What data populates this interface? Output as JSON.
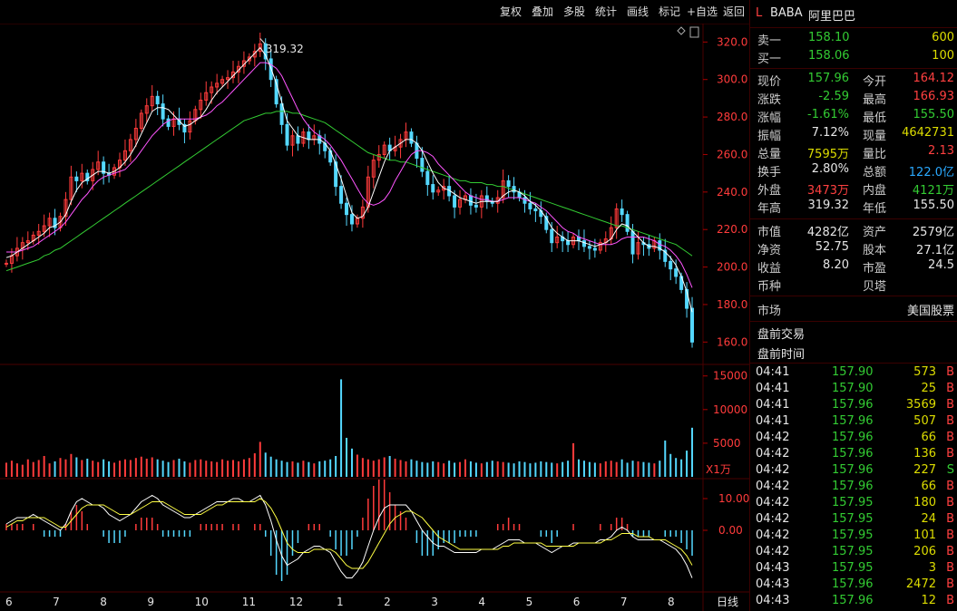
{
  "toolbar": {
    "buttons": [
      "复权",
      "叠加",
      "多股",
      "统计",
      "画线",
      "标记",
      "+自选",
      "返回"
    ]
  },
  "chart_data": {
    "type": "line",
    "main_price_ticks": [
      "320.0",
      "300.0",
      "280.0",
      "260.0",
      "240.0",
      "220.0",
      "200.0",
      "180.0",
      "160.0"
    ],
    "price_range": [
      150,
      325
    ],
    "max_price_label": "319.32",
    "volume_ticks": [
      "15000",
      "10000",
      "5000"
    ],
    "volume_unit": "X1万",
    "macd_ticks": [
      "10.00",
      "0.00"
    ],
    "x_labels": [
      "6",
      "7",
      "8",
      "9",
      "10",
      "11",
      "12",
      "1",
      "2",
      "3",
      "4",
      "5",
      "6",
      "7",
      "8"
    ],
    "period_label": "日线",
    "close_series": [
      202,
      206,
      210,
      213,
      214,
      217,
      219,
      222,
      226,
      221,
      227,
      236,
      248,
      246,
      250,
      246,
      252,
      256,
      250,
      249,
      253,
      257,
      262,
      268,
      274,
      282,
      286,
      291,
      287,
      279,
      275,
      279,
      276,
      272,
      278,
      284,
      289,
      293,
      296,
      298,
      300,
      301,
      304,
      307,
      310,
      312,
      315,
      319,
      311,
      300,
      287,
      276,
      265,
      270,
      266,
      272,
      268,
      270,
      266,
      262,
      256,
      243,
      234,
      228,
      223,
      226,
      232,
      248,
      257,
      260,
      265,
      262,
      264,
      268,
      272,
      266,
      258,
      251,
      244,
      240,
      241,
      243,
      238,
      232,
      236,
      238,
      233,
      232,
      238,
      235,
      234,
      237,
      246,
      243,
      240,
      237,
      234,
      231,
      230,
      227,
      220,
      213,
      216,
      214,
      212,
      216,
      214,
      211,
      210,
      209,
      213,
      215,
      221,
      231,
      228,
      219,
      207,
      213,
      212,
      210,
      214,
      209,
      203,
      199,
      195,
      188,
      178,
      160
    ],
    "ma5": [
      205,
      206,
      208,
      210,
      212,
      214,
      216,
      218,
      221,
      222,
      224,
      228,
      235,
      241,
      245,
      247,
      249,
      251,
      251,
      250,
      251,
      253,
      256,
      260,
      265,
      271,
      277,
      283,
      285,
      285,
      284,
      281,
      278,
      275,
      276,
      278,
      280,
      284,
      289,
      293,
      296,
      299,
      302,
      305,
      308,
      311,
      314,
      317,
      313,
      306,
      298,
      288,
      278,
      274,
      270,
      269,
      268,
      268,
      268,
      266,
      262,
      255,
      247,
      238,
      229,
      226,
      227,
      232,
      240,
      248,
      256,
      262,
      264,
      266,
      268,
      268,
      266,
      262,
      256,
      250,
      245,
      242,
      241,
      239,
      237,
      236,
      235,
      234,
      235,
      235,
      235,
      235,
      238,
      240,
      241,
      240,
      238,
      235,
      233,
      230,
      226,
      221,
      218,
      216,
      214,
      214,
      214,
      213,
      212,
      211,
      212,
      213,
      215,
      220,
      223,
      222,
      219,
      216,
      213,
      211,
      211,
      210,
      208,
      205,
      201,
      195,
      187,
      176
    ],
    "ma10": [
      208,
      208,
      208,
      209,
      210,
      211,
      213,
      215,
      217,
      219,
      221,
      224,
      228,
      232,
      236,
      239,
      243,
      246,
      248,
      249,
      250,
      251,
      252,
      255,
      258,
      262,
      266,
      270,
      273,
      276,
      278,
      279,
      279,
      279,
      279,
      279,
      280,
      281,
      283,
      286,
      288,
      291,
      294,
      297,
      300,
      303,
      306,
      309,
      309,
      308,
      306,
      302,
      296,
      290,
      284,
      279,
      275,
      272,
      270,
      268,
      265,
      261,
      257,
      252,
      247,
      242,
      237,
      234,
      233,
      234,
      236,
      240,
      246,
      251,
      256,
      260,
      262,
      262,
      261,
      259,
      255,
      252,
      249,
      246,
      243,
      240,
      238,
      237,
      236,
      236,
      235,
      235,
      236,
      237,
      237,
      237,
      236,
      235,
      234,
      232,
      230,
      227,
      224,
      221,
      219,
      218,
      216,
      215,
      214,
      213,
      212,
      212,
      212,
      213,
      215,
      216,
      216,
      216,
      216,
      215,
      214,
      212,
      211,
      209,
      206,
      202,
      196,
      189
    ],
    "ma60": [
      198,
      199,
      200,
      201,
      202,
      203,
      204,
      206,
      207,
      209,
      210,
      212,
      214,
      216,
      218,
      220,
      222,
      224,
      226,
      228,
      230,
      232,
      234,
      236,
      238,
      240,
      242,
      244,
      246,
      248,
      250,
      252,
      254,
      256,
      258,
      260,
      262,
      264,
      266,
      268,
      270,
      272,
      274,
      276,
      278,
      279,
      280,
      281,
      282,
      282,
      283,
      283,
      283,
      282,
      282,
      281,
      280,
      279,
      278,
      277,
      275,
      273,
      271,
      269,
      267,
      265,
      263,
      261,
      260,
      259,
      258,
      257,
      257,
      256,
      256,
      255,
      254,
      253,
      252,
      251,
      250,
      249,
      248,
      247,
      246,
      246,
      245,
      245,
      245,
      244,
      244,
      243,
      243,
      242,
      241,
      240,
      239,
      238,
      237,
      236,
      235,
      234,
      233,
      232,
      231,
      230,
      229,
      228,
      227,
      226,
      225,
      224,
      223,
      222,
      222,
      221,
      220,
      219,
      218,
      217,
      216,
      215,
      214,
      213,
      212,
      210,
      208,
      206
    ],
    "volume_series": [
      2100,
      2400,
      2000,
      1800,
      2600,
      2200,
      2500,
      3100,
      2000,
      2300,
      2800,
      2600,
      3400,
      2900,
      2500,
      2700,
      2400,
      2200,
      2600,
      2300,
      2100,
      2400,
      2600,
      2500,
      2800,
      3000,
      2700,
      2900,
      2600,
      2400,
      2200,
      2500,
      2700,
      2300,
      2100,
      2500,
      2600,
      2400,
      2300,
      2200,
      2600,
      2400,
      2500,
      2300,
      2600,
      2800,
      3500,
      5200,
      3600,
      3000,
      2600,
      2400,
      2200,
      2300,
      2100,
      2400,
      2200,
      2000,
      2300,
      2400,
      2600,
      3100,
      14500,
      5800,
      4200,
      3300,
      2800,
      2600,
      2400,
      2600,
      2900,
      3100,
      2700,
      2500,
      2300,
      2600,
      2400,
      2200,
      2100,
      2300,
      2200,
      2000,
      2400,
      2100,
      2200,
      2600,
      2300,
      2100,
      2000,
      2200,
      2400,
      2300,
      2200,
      2100,
      2000,
      2300,
      2200,
      2000,
      2100,
      2300,
      2200,
      2100,
      2000,
      2200,
      2400,
      5000,
      2600,
      2400,
      2200,
      2100,
      2000,
      2300,
      2400,
      2200,
      2600,
      2100,
      2400,
      2300,
      2200,
      2100,
      2000,
      2400,
      5400,
      3400,
      2800,
      2600,
      3900,
      7300
    ],
    "macd_dif": [
      2,
      3,
      4,
      4,
      4,
      5,
      4,
      3,
      2,
      1,
      0,
      2,
      6,
      9,
      10,
      9,
      8,
      8,
      7,
      5,
      4,
      3,
      4,
      5,
      7,
      9,
      10,
      11,
      10,
      8,
      7,
      6,
      5,
      4,
      4,
      5,
      6,
      7,
      8,
      9,
      9,
      9,
      10,
      10,
      9,
      9,
      10,
      11,
      8,
      3,
      -3,
      -8,
      -11,
      -10,
      -9,
      -7,
      -6,
      -5,
      -5,
      -6,
      -7,
      -10,
      -13,
      -15,
      -15,
      -13,
      -10,
      -5,
      0,
      4,
      7,
      8,
      8,
      8,
      8,
      6,
      3,
      0,
      -2,
      -4,
      -5,
      -5,
      -6,
      -7,
      -7,
      -7,
      -7,
      -7,
      -6,
      -6,
      -6,
      -5,
      -4,
      -3,
      -3,
      -3,
      -4,
      -4,
      -4,
      -5,
      -6,
      -7,
      -6,
      -5,
      -5,
      -4,
      -4,
      -4,
      -4,
      -4,
      -3,
      -3,
      -2,
      0,
      1,
      0,
      -2,
      -3,
      -3,
      -3,
      -3,
      -3,
      -4,
      -5,
      -6,
      -8,
      -11,
      -15
    ],
    "macd_dea": [
      1,
      2,
      3,
      3,
      4,
      4,
      4,
      4,
      3,
      2,
      1,
      1,
      3,
      5,
      7,
      8,
      8,
      8,
      8,
      7,
      6,
      5,
      5,
      5,
      6,
      7,
      8,
      9,
      9,
      9,
      8,
      7,
      6,
      5,
      5,
      5,
      5,
      6,
      7,
      8,
      8,
      9,
      9,
      9,
      9,
      9,
      9,
      10,
      9,
      7,
      4,
      0,
      -4,
      -6,
      -7,
      -7,
      -7,
      -6,
      -6,
      -6,
      -6,
      -7,
      -9,
      -11,
      -12,
      -12,
      -12,
      -10,
      -7,
      -4,
      -1,
      2,
      4,
      5,
      6,
      6,
      5,
      4,
      2,
      0,
      -2,
      -3,
      -4,
      -5,
      -6,
      -6,
      -6,
      -6,
      -6,
      -6,
      -6,
      -6,
      -5,
      -5,
      -4,
      -4,
      -4,
      -4,
      -4,
      -4,
      -5,
      -5,
      -5,
      -5,
      -5,
      -5,
      -4,
      -4,
      -4,
      -4,
      -4,
      -3,
      -3,
      -2,
      -1,
      -1,
      -1,
      -2,
      -2,
      -2,
      -3,
      -3,
      -3,
      -4,
      -5,
      -6,
      -8,
      -11
    ]
  },
  "quote": {
    "header_mark": "L",
    "symbol": "BABA",
    "name": "阿里巴巴",
    "sell1_label": "卖一",
    "sell1_price": "158.10",
    "sell1_vol": "600",
    "buy1_label": "买一",
    "buy1_price": "158.06",
    "buy1_vol": "100",
    "fields": [
      {
        "l1": "现价",
        "v1": "157.96",
        "c1": "green",
        "l2": "今开",
        "v2": "164.12",
        "c2": "red"
      },
      {
        "l1": "涨跌",
        "v1": "-2.59",
        "c1": "green",
        "l2": "最高",
        "v2": "166.93",
        "c2": "red"
      },
      {
        "l1": "涨幅",
        "v1": "-1.61%",
        "c1": "green",
        "l2": "最低",
        "v2": "155.50",
        "c2": "green"
      },
      {
        "l1": "振幅",
        "v1": "7.12%",
        "c1": "white",
        "l2": "现量",
        "v2": "4642731",
        "c2": "yellow"
      },
      {
        "l1": "总量",
        "v1": "7595万",
        "c1": "yellow",
        "l2": "量比",
        "v2": "2.13",
        "c2": "red"
      },
      {
        "l1": "换手",
        "v1": "2.80%",
        "c1": "white",
        "l2": "总额",
        "v2": "122.0亿",
        "c2": "cyan"
      },
      {
        "l1": "外盘",
        "v1": "3473万",
        "c1": "red",
        "l2": "内盘",
        "v2": "4121万",
        "c2": "green"
      },
      {
        "l1": "年高",
        "v1": "319.32",
        "c1": "white",
        "l2": "年低",
        "v2": "155.50",
        "c2": "white"
      }
    ],
    "fundamentals": [
      {
        "l1": "市值",
        "v1": "4282亿",
        "l2": "资产",
        "v2": "2579亿"
      },
      {
        "l1": "净资",
        "v1": "52.75",
        "l2": "股本",
        "v2": "27.1亿"
      },
      {
        "l1": "收益",
        "v1": "8.20",
        "l2": "市盈",
        "v2": "24.5"
      },
      {
        "l1": "币种",
        "v1": "",
        "l2": "贝塔",
        "v2": ""
      }
    ],
    "market_label": "市场",
    "market_value": "美国股票",
    "premarket_trade": "盘前交易",
    "premarket_time": "盘前时间"
  },
  "ticks": [
    {
      "time": "04:41",
      "price": "157.90",
      "vol": "573",
      "side": "B"
    },
    {
      "time": "04:41",
      "price": "157.90",
      "vol": "25",
      "side": "B"
    },
    {
      "time": "04:41",
      "price": "157.96",
      "vol": "3569",
      "side": "B"
    },
    {
      "time": "04:41",
      "price": "157.96",
      "vol": "507",
      "side": "B"
    },
    {
      "time": "04:42",
      "price": "157.96",
      "vol": "66",
      "side": "B"
    },
    {
      "time": "04:42",
      "price": "157.96",
      "vol": "136",
      "side": "B"
    },
    {
      "time": "04:42",
      "price": "157.96",
      "vol": "227",
      "side": "S"
    },
    {
      "time": "04:42",
      "price": "157.96",
      "vol": "66",
      "side": "B"
    },
    {
      "time": "04:42",
      "price": "157.95",
      "vol": "180",
      "side": "B"
    },
    {
      "time": "04:42",
      "price": "157.95",
      "vol": "24",
      "side": "B"
    },
    {
      "time": "04:42",
      "price": "157.95",
      "vol": "101",
      "side": "B"
    },
    {
      "time": "04:42",
      "price": "157.95",
      "vol": "206",
      "side": "B"
    },
    {
      "time": "04:43",
      "price": "157.95",
      "vol": "3",
      "side": "B"
    },
    {
      "time": "04:43",
      "price": "157.96",
      "vol": "2472",
      "side": "B"
    },
    {
      "time": "04:43",
      "price": "157.96",
      "vol": "12",
      "side": "B"
    }
  ],
  "colors": {
    "up": "#ff3b3b",
    "down": "#54d8ff",
    "ma5": "#ffffff",
    "ma10": "#ff55ff",
    "ma60": "#33cc33",
    "dif": "#ffffff",
    "dea": "#ffff44",
    "grid": "#4a0000"
  }
}
